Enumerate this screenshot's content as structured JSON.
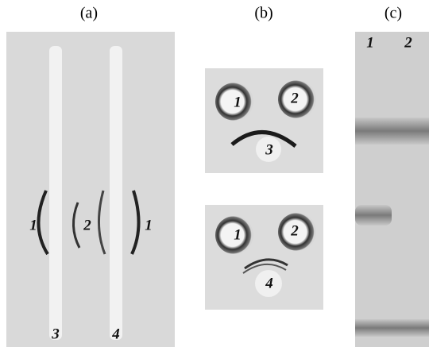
{
  "panels": [
    {
      "label": "(a)",
      "numbers": [
        "1",
        "2",
        "1",
        "3",
        "4"
      ]
    },
    {
      "label": "(b)",
      "top": [
        "1",
        "2",
        "3"
      ],
      "bottom": [
        "1",
        "2",
        "4"
      ]
    },
    {
      "label": "(c)",
      "lanes": [
        "1",
        "2"
      ]
    }
  ]
}
